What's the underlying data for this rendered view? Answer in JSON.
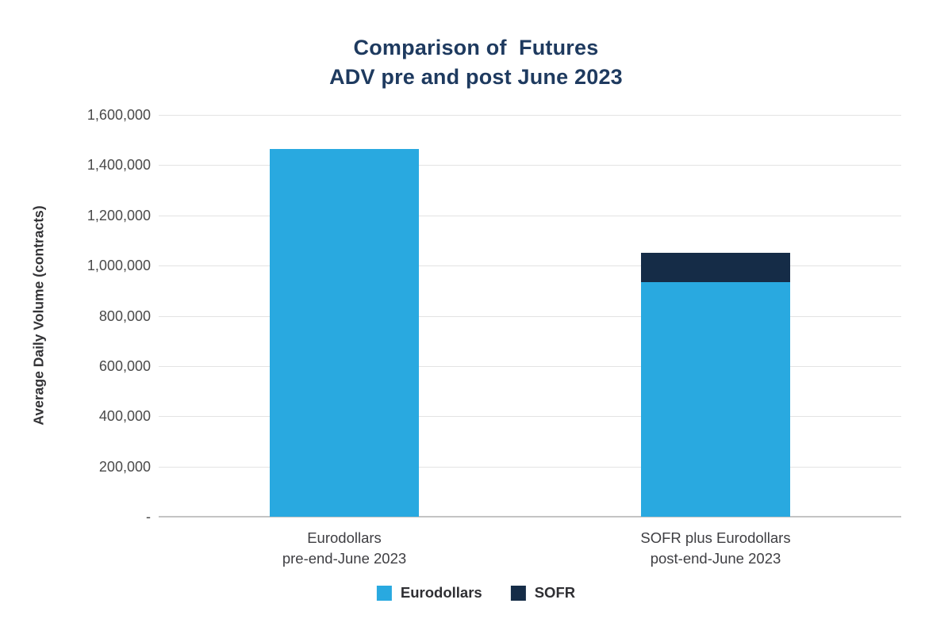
{
  "title": {
    "line1": "Comparison of  Futures",
    "line2": "ADV pre and post June 2023"
  },
  "colors": {
    "eurodollars_blue": "#29A9E0",
    "sofr_navy": "#152C47",
    "title_text": "#1E3A5F",
    "tick_text": "#4A4A4A",
    "category_text": "#3E3E42",
    "gridline": "#E3E3E3",
    "axis_line": "#C4C4C4",
    "background": "#FFFFFF"
  },
  "chart_data": {
    "type": "bar",
    "stacked": true,
    "title": "Comparison of  Futures ADV pre and post June 2023",
    "xlabel": "",
    "ylabel": "Average Daily Volume (contracts)",
    "ylim": [
      0,
      1600000
    ],
    "ytick_interval": 200000,
    "grid": "horizontal",
    "categories": [
      [
        "Eurodollars",
        "pre-end-June 2023"
      ],
      [
        "SOFR plus Eurodollars",
        "post-end-June 2023"
      ]
    ],
    "series": [
      {
        "name": "Eurodollars",
        "color": "#29A9E0",
        "values": [
          1465000,
          935000
        ]
      },
      {
        "name": "SOFR",
        "color": "#152C47",
        "values": [
          0,
          115000
        ]
      }
    ],
    "totals": [
      1465000,
      1050000
    ],
    "yticks": [
      {
        "value": 1600000,
        "label": "1,600,000"
      },
      {
        "value": 1400000,
        "label": "1,400,000"
      },
      {
        "value": 1200000,
        "label": "1,200,000"
      },
      {
        "value": 1000000,
        "label": "1,000,000"
      },
      {
        "value": 800000,
        "label": "800,000"
      },
      {
        "value": 600000,
        "label": "600,000"
      },
      {
        "value": 400000,
        "label": "400,000"
      },
      {
        "value": 200000,
        "label": "200,000"
      },
      {
        "value": 0,
        "label": "-"
      }
    ],
    "legend": {
      "position": "bottom",
      "entries": [
        {
          "label": "Eurodollars",
          "color": "#29A9E0"
        },
        {
          "label": "SOFR",
          "color": "#152C47"
        }
      ]
    }
  }
}
